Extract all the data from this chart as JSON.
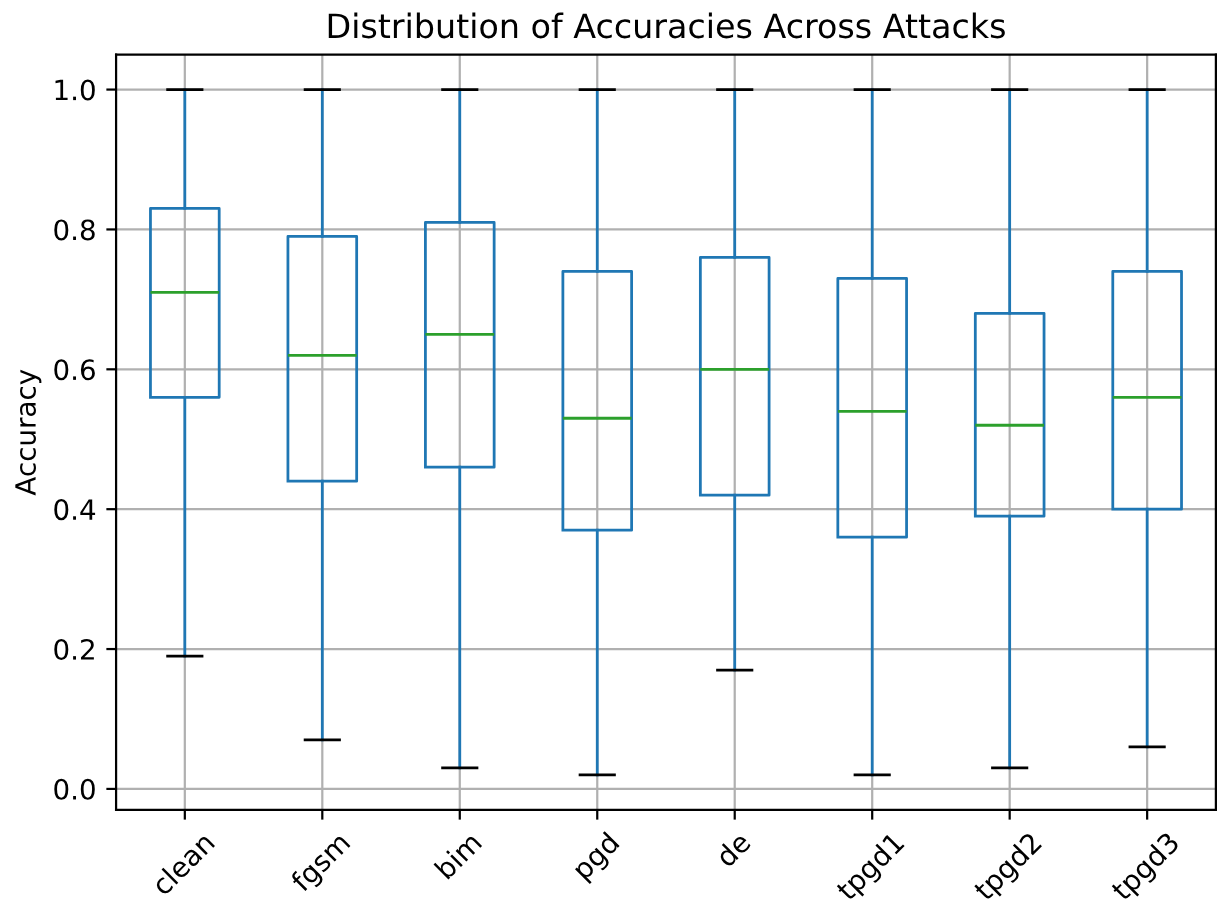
{
  "chart_data": {
    "type": "box",
    "title": "Distribution of Accuracies Across Attacks",
    "ylabel": "Accuracy",
    "categories": [
      "clean",
      "fgsm",
      "bim",
      "pgd",
      "de",
      "tpgd1",
      "tpgd2",
      "tpgd3"
    ],
    "boxes": [
      {
        "low": 0.19,
        "q1": 0.56,
        "median": 0.71,
        "q3": 0.83,
        "high": 1.0
      },
      {
        "low": 0.07,
        "q1": 0.44,
        "median": 0.62,
        "q3": 0.79,
        "high": 1.0
      },
      {
        "low": 0.03,
        "q1": 0.46,
        "median": 0.65,
        "q3": 0.81,
        "high": 1.0
      },
      {
        "low": 0.02,
        "q1": 0.37,
        "median": 0.53,
        "q3": 0.74,
        "high": 1.0
      },
      {
        "low": 0.17,
        "q1": 0.42,
        "median": 0.6,
        "q3": 0.76,
        "high": 1.0
      },
      {
        "low": 0.02,
        "q1": 0.36,
        "median": 0.54,
        "q3": 0.73,
        "high": 1.0
      },
      {
        "low": 0.03,
        "q1": 0.39,
        "median": 0.52,
        "q3": 0.68,
        "high": 1.0
      },
      {
        "low": 0.06,
        "q1": 0.4,
        "median": 0.56,
        "q3": 0.74,
        "high": 1.0
      }
    ],
    "color": "#1f77b4",
    "ylim": [
      -0.03,
      1.05
    ],
    "yticks": [
      {
        "value": 0,
        "label": "0.0"
      },
      0.2,
      0.4,
      0.6,
      0.8,
      {
        "value": 1,
        "label": "1.0"
      }
    ],
    "grid": true
  }
}
